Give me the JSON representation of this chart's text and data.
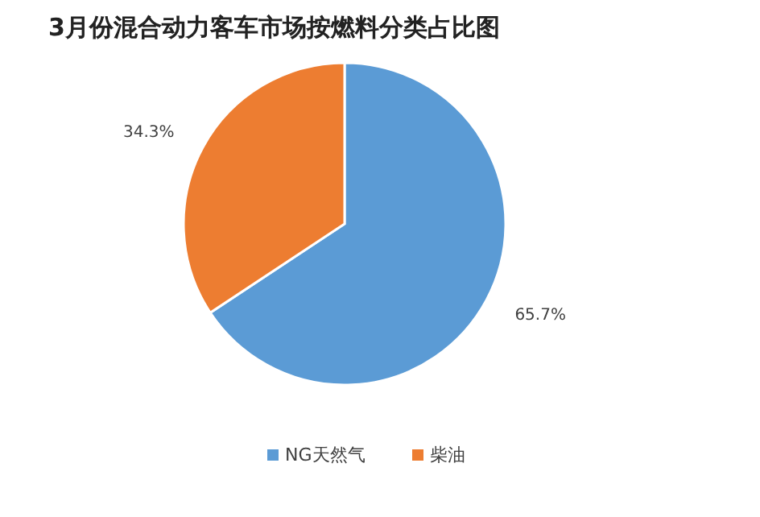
{
  "chart_data": {
    "type": "pie",
    "title": "3月份混合动力客车市场按燃料分类占比图",
    "categories": [
      "NG天然气",
      "柴油"
    ],
    "values": [
      65.7,
      34.3
    ],
    "colors": [
      "#5b9bd5",
      "#ed7d31"
    ],
    "value_labels": [
      "65.7%",
      "34.3%"
    ],
    "legend": "bottom"
  }
}
